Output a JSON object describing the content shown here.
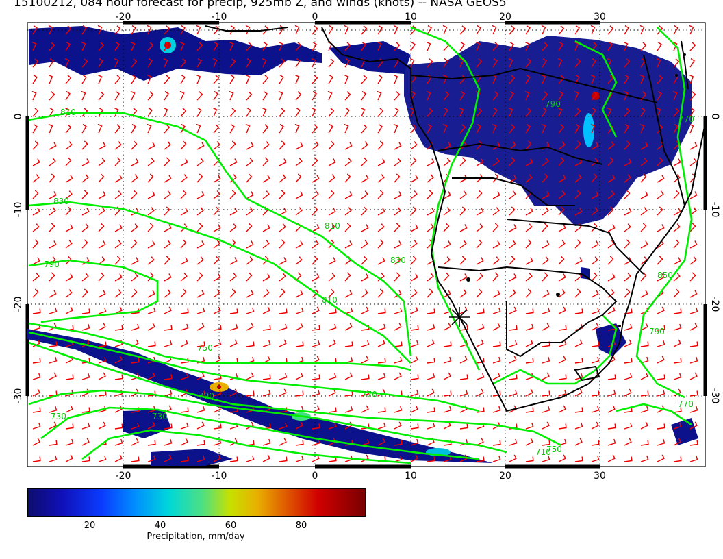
{
  "title": "15100212, 084 hour forecast for precip, 925mb Z, and winds (knots) -- NASA GEOS5",
  "map": {
    "lon_ticks_top": [
      "-20",
      "-10",
      "0",
      "10",
      "20",
      "30"
    ],
    "lon_ticks_bottom": [
      "-20",
      "-10",
      "0",
      "10",
      "20",
      "30"
    ],
    "lat_ticks_left": [
      "0",
      "-10",
      "-20",
      "-30"
    ],
    "lat_ticks_right": [
      "0",
      "-10",
      "-20",
      "-30"
    ],
    "contour_labels": [
      "810",
      "830",
      "790",
      "810",
      "810",
      "750",
      "790",
      "770",
      "730",
      "770",
      "850",
      "790",
      "730",
      "710",
      "750",
      "830",
      "790",
      "770"
    ],
    "colors": {
      "precip_dark": "#0c128c",
      "contour": "#00ee00",
      "wind": "#ee0000",
      "coast": "#000000"
    }
  },
  "colorbar": {
    "ticks": [
      "20",
      "40",
      "60",
      "80"
    ],
    "label": "Precipitation, mm/day"
  }
}
